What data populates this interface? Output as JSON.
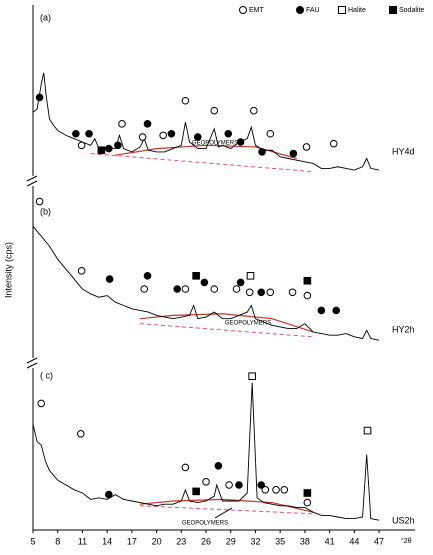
{
  "ylabel": "Intensity (cps)",
  "legend": [
    {
      "name": "EMT",
      "symbol": "circle",
      "filled": false
    },
    {
      "name": "FAU",
      "symbol": "circle",
      "filled": true
    },
    {
      "name": "Halite",
      "symbol": "square",
      "filled": false
    },
    {
      "name": "Sodalite",
      "symbol": "square",
      "filled": true
    }
  ],
  "chart_data": [
    {
      "type": "line",
      "label": "(a)",
      "sample": "HY4d",
      "color": "#000000",
      "xlim": [
        5,
        51
      ],
      "ylim": [
        0,
        100
      ],
      "x": [
        5,
        5.5,
        6,
        6.3,
        6.6,
        7,
        7.5,
        8,
        9,
        10,
        11,
        12,
        12.5,
        13,
        14,
        15,
        15.5,
        16,
        17,
        18,
        18.5,
        19,
        20,
        21,
        22,
        23,
        23.5,
        24,
        25,
        26,
        27,
        27.5,
        28,
        29,
        30,
        31,
        31.5,
        32,
        33,
        34,
        35,
        36,
        37,
        38,
        39,
        40,
        41,
        42,
        43,
        44,
        45,
        45.5,
        46,
        47
      ],
      "values": [
        38,
        40,
        55,
        62,
        48,
        34,
        30,
        27,
        24,
        22,
        20,
        18,
        22,
        16,
        17,
        16,
        24,
        16,
        14,
        17,
        22,
        15,
        14,
        14,
        16,
        18,
        32,
        20,
        16,
        16,
        28,
        17,
        18,
        16,
        20,
        22,
        29,
        18,
        15,
        15,
        11,
        10,
        9,
        8,
        7,
        4,
        4,
        5,
        4,
        3,
        5,
        10,
        4,
        3
      ],
      "markers": [
        {
          "x": [
            10.9,
            15.8,
            18.3,
            20.8,
            23.5,
            27,
            31.8,
            33.8,
            38.2,
            41.5
          ],
          "y": [
            18,
            31,
            23,
            24,
            45,
            39,
            39,
            25,
            17,
            19
          ]
        },
        {
          "x": [
            5.8,
            10.2,
            11.8,
            14.2,
            15.3,
            18.9,
            21.8,
            25,
            28.7,
            30.2,
            32.8,
            36.6
          ],
          "y": [
            47,
            25,
            25,
            16,
            18,
            31,
            25,
            23,
            25,
            20,
            14,
            13
          ]
        },
        {
          "x": [],
          "y": []
        },
        {
          "x": [
            13.3
          ],
          "y": [
            15
          ]
        }
      ],
      "geopolymer": {
        "label": "GEOPOLYMERS",
        "base_x": [
          12,
          39
        ],
        "base_values": [
          13,
          2
        ],
        "hump_x": [
          15,
          20,
          26,
          32,
          37
        ],
        "hump_values": [
          12,
          16,
          18,
          17,
          10
        ]
      }
    },
    {
      "type": "line",
      "label": "(b)",
      "sample": "HY2h",
      "color": "#000000",
      "xlim": [
        5,
        51
      ],
      "ylim": [
        0,
        100
      ],
      "x": [
        5,
        6,
        7,
        8,
        9,
        10,
        11,
        12,
        13,
        14,
        15,
        16,
        17,
        18,
        19,
        20,
        21,
        22,
        23,
        24,
        24.5,
        25,
        26,
        27,
        28,
        29,
        30,
        31,
        31.5,
        32,
        33,
        34,
        35,
        36,
        37,
        38,
        39,
        40,
        41,
        42,
        43,
        44,
        45,
        45.5,
        46,
        47
      ],
      "values": [
        78,
        72,
        66,
        58,
        52,
        46,
        40,
        37,
        35,
        36,
        32,
        30,
        28,
        27,
        26,
        24,
        23,
        22,
        23,
        24,
        30,
        22,
        23,
        26,
        22,
        22,
        24,
        26,
        30,
        22,
        20,
        18,
        17,
        16,
        16,
        19,
        14,
        13,
        12,
        12,
        13,
        11,
        10,
        15,
        10,
        9
      ],
      "markers": [
        {
          "x": [
            5.8,
            10.9,
            18.5,
            23.5,
            27,
            29.7,
            31.3,
            33.8,
            36.5,
            38.3
          ],
          "y": [
            93,
            51,
            40,
            40,
            40,
            40,
            38,
            38,
            38,
            36
          ]
        },
        {
          "x": [
            14.3,
            18.9,
            22.5,
            25.8,
            30.2,
            32.7,
            40,
            41.8
          ],
          "y": [
            46,
            48,
            40,
            44,
            44,
            38,
            27,
            27
          ]
        },
        {
          "x": [
            31.4
          ],
          "y": [
            48
          ]
        },
        {
          "x": [
            24.8,
            38.3
          ],
          "y": [
            48,
            45
          ]
        }
      ],
      "geopolymer": {
        "label": "GEOPOLYMERS",
        "base_x": [
          18,
          39
        ],
        "base_values": [
          19,
          11
        ],
        "hump_x": [
          18,
          22,
          28,
          34,
          39
        ],
        "hump_values": [
          22,
          24,
          25,
          22,
          14
        ]
      }
    },
    {
      "type": "line",
      "label": "( c)",
      "sample": "US2h",
      "color": "#000000",
      "xlim": [
        5,
        51
      ],
      "ylim": [
        0,
        100
      ],
      "xticks": [
        5,
        8,
        11,
        14,
        17,
        20,
        23,
        26,
        29,
        32,
        35,
        38,
        41,
        44,
        47
      ],
      "xlabel": "°2θ",
      "x": [
        5,
        5.5,
        6,
        6.5,
        7,
        8,
        9,
        10,
        11,
        12,
        13,
        14,
        15,
        16,
        17,
        18,
        19,
        20,
        21,
        22,
        23,
        23.5,
        24,
        25,
        26,
        27,
        27.3,
        28,
        29,
        30,
        31,
        31.6,
        32.2,
        33,
        34,
        35,
        36,
        37,
        38,
        39,
        40,
        41,
        42,
        43,
        44,
        45,
        45.5,
        46,
        47
      ],
      "values": [
        63,
        52,
        50,
        40,
        34,
        28,
        25,
        22,
        20,
        16,
        17,
        16,
        19,
        16,
        15,
        14,
        13,
        12,
        13,
        13,
        15,
        22,
        15,
        14,
        15,
        18,
        25,
        15,
        15,
        15,
        20,
        89,
        17,
        14,
        13,
        12,
        12,
        11,
        11,
        8,
        6,
        6,
        5,
        4,
        4,
        5,
        44,
        4,
        3
      ],
      "markers": [
        {
          "x": [
            6,
            10.8,
            23.5,
            26,
            28.8,
            33.2,
            34.5,
            35.5,
            38.3
          ],
          "y": [
            76,
            57,
            36,
            27,
            25,
            22,
            22,
            22,
            14
          ]
        },
        {
          "x": [
            14.2,
            27.5,
            30,
            32.7
          ],
          "y": [
            19,
            37,
            25,
            25
          ]
        },
        {
          "x": [
            31.6,
            45.6
          ],
          "y": [
            93,
            59
          ]
        },
        {
          "x": [
            24.8,
            38.3
          ],
          "y": [
            21,
            20
          ]
        }
      ],
      "geopolymer": {
        "label": "GEOPOLYMERS",
        "base_x": [
          18,
          39
        ],
        "base_values": [
          12,
          7
        ],
        "hump_x": [
          18,
          22,
          28,
          34,
          39
        ],
        "hump_values": [
          13,
          15,
          16,
          14,
          8
        ]
      }
    }
  ]
}
